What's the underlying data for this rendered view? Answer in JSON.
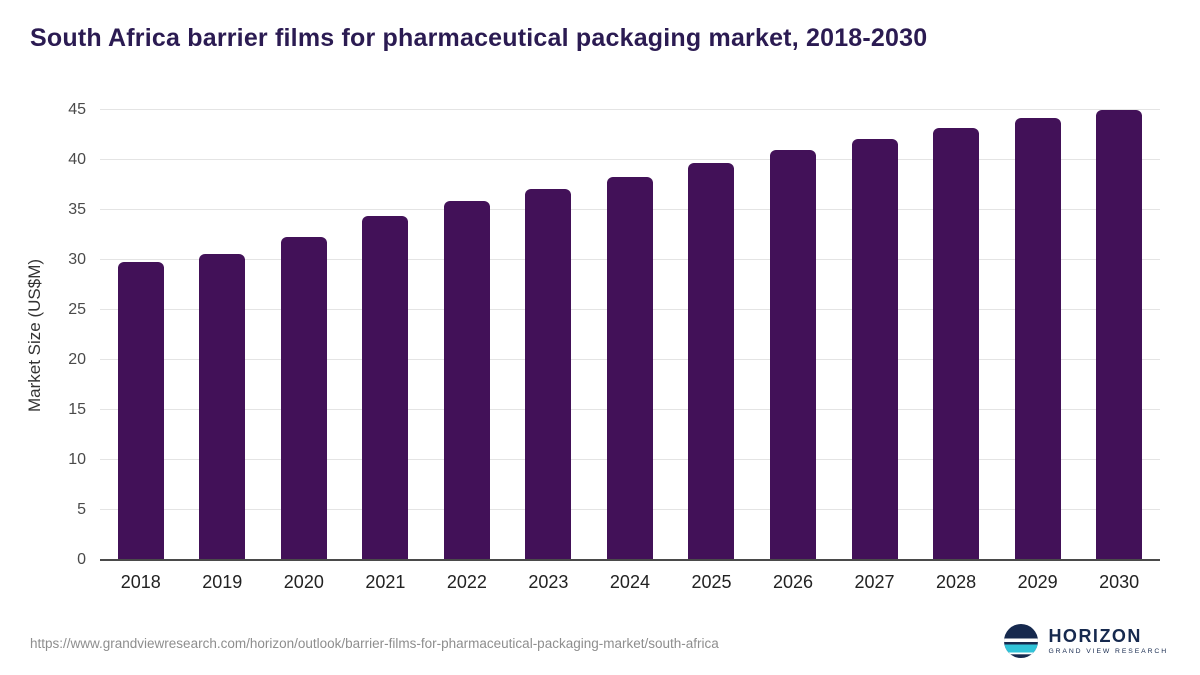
{
  "title": "South Africa barrier films for pharmaceutical packaging market, 2018-2030",
  "footer": {
    "source_url": "https://www.grandviewresearch.com/horizon/outlook/barrier-films-for-pharmaceutical-packaging-market/south-africa",
    "logo_name": "HORIZON",
    "logo_subtext": "GRAND VIEW RESEARCH"
  },
  "colors": {
    "bar": "#421158",
    "title": "#2b1b52",
    "gridline": "#e4e4e4",
    "axis": "#4a4a4a",
    "logo_navy": "#16294e",
    "logo_teal": "#31c3d8"
  },
  "chart_data": {
    "type": "bar",
    "title": "South Africa barrier films for pharmaceutical packaging market, 2018-2030",
    "categories": [
      "2018",
      "2019",
      "2020",
      "2021",
      "2022",
      "2023",
      "2024",
      "2025",
      "2026",
      "2027",
      "2028",
      "2029",
      "2030"
    ],
    "values": [
      29.8,
      30.6,
      32.3,
      34.4,
      35.9,
      37.1,
      38.3,
      39.7,
      41.0,
      42.1,
      43.2,
      44.2,
      45.0
    ],
    "xlabel": "",
    "ylabel": "Market Size (US$M)",
    "ylim": [
      0,
      45
    ],
    "yticks": [
      0,
      5,
      10,
      15,
      20,
      25,
      30,
      35,
      40,
      45
    ],
    "grid": true,
    "legend": "none",
    "bar_color": "#421158"
  }
}
